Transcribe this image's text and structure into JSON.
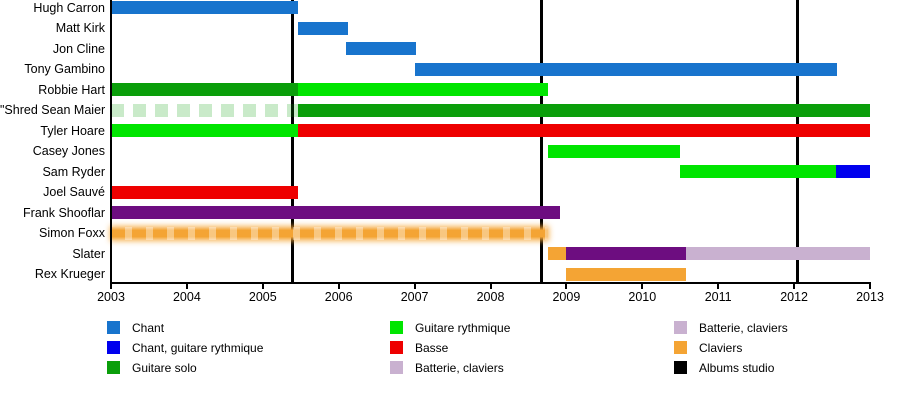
{
  "chart_data": {
    "type": "gantt-timeline",
    "title": "",
    "x_axis": {
      "start": 2003,
      "end": 2013,
      "ticks": [
        2003,
        2004,
        2005,
        2006,
        2007,
        2008,
        2009,
        2010,
        2011,
        2012,
        2013
      ]
    },
    "palette": {
      "chant": "#1874cd",
      "chant_guitare_rythmique": "#0000ee",
      "guitare_solo": "#0a9e0a",
      "guitare_rythmique": "#00e500",
      "basse": "#ee0000",
      "batterie_claviers": "#c9b1d0",
      "claviers": "#f4a434",
      "batterie_purple": "#6d0d80",
      "albums_studio": "#000000"
    },
    "members": [
      {
        "name": "Hugh Carron",
        "segments": [
          {
            "color": "chant",
            "start": 2003.0,
            "end": 2005.47
          }
        ]
      },
      {
        "name": "Matt Kirk",
        "segments": [
          {
            "color": "chant",
            "start": 2005.47,
            "end": 2006.12
          }
        ]
      },
      {
        "name": "Jon Cline",
        "segments": [
          {
            "color": "chant",
            "start": 2006.1,
            "end": 2007.02
          }
        ]
      },
      {
        "name": "Tony Gambino",
        "segments": [
          {
            "color": "chant",
            "start": 2007.0,
            "end": 2012.57
          }
        ]
      },
      {
        "name": "Robbie Hart",
        "segments": [
          {
            "color": "guitare_solo",
            "start": 2003.0,
            "end": 2005.47
          },
          {
            "color": "guitare_rythmique",
            "start": 2005.47,
            "end": 2008.76
          }
        ]
      },
      {
        "name": "\"Shred Sean Maier",
        "segments": [
          {
            "color": "guitare_solo",
            "style": "faded",
            "start": 2003.0,
            "end": 2005.47
          },
          {
            "color": "guitare_solo",
            "start": 2005.47,
            "end": 2013.0
          }
        ]
      },
      {
        "name": "Tyler Hoare",
        "segments": [
          {
            "color": "guitare_rythmique",
            "start": 2003.0,
            "end": 2005.47
          },
          {
            "color": "basse",
            "start": 2005.47,
            "end": 2013.0
          }
        ]
      },
      {
        "name": "Casey Jones",
        "segments": [
          {
            "color": "guitare_rythmique",
            "start": 2008.76,
            "end": 2010.5
          }
        ]
      },
      {
        "name": "Sam Ryder",
        "segments": [
          {
            "color": "guitare_rythmique",
            "start": 2010.5,
            "end": 2012.55
          },
          {
            "color": "chant_guitare_rythmique",
            "start": 2012.55,
            "end": 2013.0
          }
        ]
      },
      {
        "name": "Joel Sauvé",
        "segments": [
          {
            "color": "basse",
            "start": 2003.0,
            "end": 2005.47
          }
        ]
      },
      {
        "name": "Frank Shooflar",
        "segments": [
          {
            "color": "batterie_purple",
            "start": 2003.0,
            "end": 2008.92
          }
        ]
      },
      {
        "name": "Simon Foxx",
        "segments": [
          {
            "color": "claviers",
            "style": "fuzzy",
            "start": 2003.0,
            "end": 2008.76
          }
        ]
      },
      {
        "name": "Slater",
        "segments": [
          {
            "color": "claviers",
            "start": 2008.76,
            "end": 2009.0
          },
          {
            "color": "batterie_purple",
            "start": 2009.0,
            "end": 2010.58
          },
          {
            "color": "batterie_claviers",
            "start": 2010.58,
            "end": 2013.0
          }
        ]
      },
      {
        "name": "Rex Krueger",
        "segments": [
          {
            "color": "claviers",
            "start": 2009.0,
            "end": 2010.58
          }
        ]
      }
    ],
    "album_lines": [
      2005.39,
      2008.67,
      2012.04
    ],
    "legend": {
      "columns": [
        [
          {
            "label": "Chant",
            "color": "chant"
          },
          {
            "label": "Chant, guitare rythmique",
            "color": "chant_guitare_rythmique"
          },
          {
            "label": "Guitare solo",
            "color": "guitare_solo"
          }
        ],
        [
          {
            "label": "Guitare rythmique",
            "color": "guitare_rythmique"
          },
          {
            "label": "Basse",
            "color": "basse"
          },
          {
            "label": "Batterie, claviers",
            "color": "batterie_claviers"
          }
        ],
        [
          {
            "label": "Batterie, claviers",
            "color": "batterie_claviers"
          },
          {
            "label": "Claviers",
            "color": "claviers"
          },
          {
            "label": "Albums studio",
            "color": "albums_studio"
          }
        ]
      ]
    }
  }
}
